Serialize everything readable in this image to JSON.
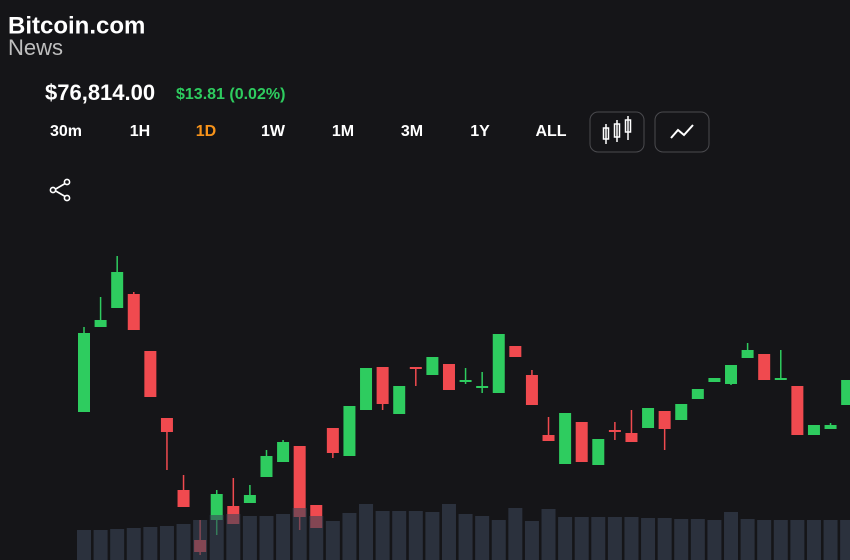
{
  "header": {
    "brand": "Bitcoin.com",
    "brand_sub": "News"
  },
  "price": "$76,814.00",
  "change": "$13.81 (0.02%)",
  "timeframes": [
    "30m",
    "1H",
    "1D",
    "1W",
    "1M",
    "3M",
    "1Y",
    "ALL"
  ],
  "active_timeframe": 2,
  "chart_data": {
    "type": "candlestick",
    "open": [
      75520,
      78920,
      79680,
      80240,
      77960,
      75280,
      72400,
      70400,
      71200,
      71760,
      71880,
      72920,
      73520,
      74160,
      71800,
      74880,
      73760,
      75600,
      77320,
      75440,
      77320,
      77000,
      77440,
      76720,
      76480,
      76280,
      78160,
      77000,
      74600,
      73440,
      75120,
      73400,
      74800,
      74680,
      74880,
      75560,
      75200,
      76040,
      76720,
      76640,
      77680,
      77840,
      76800,
      76560,
      74600,
      74840,
      75800
    ],
    "high": [
      78920,
      80120,
      81760,
      80320,
      77960,
      75280,
      73000,
      71200,
      72400,
      72880,
      72600,
      74000,
      74400,
      74160,
      71800,
      74880,
      75760,
      77280,
      77320,
      76560,
      77320,
      77720,
      77440,
      77280,
      77120,
      78640,
      78160,
      77200,
      75320,
      75480,
      75120,
      74440,
      75120,
      75600,
      75680,
      75560,
      75840,
      76440,
      76880,
      77400,
      78280,
      77840,
      78000,
      76560,
      75000,
      75080,
      76800
    ],
    "low": [
      75520,
      78920,
      79680,
      78800,
      76120,
      73200,
      71720,
      69800,
      70600,
      71040,
      71880,
      72920,
      73520,
      70800,
      70880,
      73680,
      73760,
      75600,
      75600,
      75440,
      76560,
      77000,
      76400,
      76640,
      76280,
      76280,
      77720,
      75800,
      74360,
      73440,
      73520,
      73400,
      74400,
      74320,
      74880,
      74000,
      75200,
      76040,
      76720,
      76600,
      77680,
      76800,
      76800,
      74600,
      74600,
      74840,
      75800
    ],
    "close": [
      78680,
      79200,
      81120,
      78800,
      76120,
      74720,
      71720,
      69920,
      72240,
      71040,
      72200,
      73760,
      74320,
      71320,
      70880,
      73880,
      75760,
      77280,
      75840,
      76560,
      77240,
      77720,
      76400,
      76800,
      76560,
      78640,
      77720,
      75800,
      74360,
      75480,
      73520,
      74440,
      74720,
      74320,
      75680,
      74840,
      75840,
      76440,
      76880,
      77400,
      78000,
      76800,
      76880,
      74600,
      75000,
      75000,
      76800
    ],
    "volume": [
      30,
      30,
      31,
      32,
      33,
      34,
      36,
      40,
      45,
      46,
      44,
      44,
      46,
      52,
      44,
      39,
      47,
      56,
      49,
      49,
      49,
      48,
      56,
      46,
      44,
      40,
      52,
      39,
      51,
      43,
      43,
      43,
      43,
      43,
      42,
      42,
      41,
      41,
      40,
      48,
      41,
      40,
      40,
      40,
      40,
      40,
      40
    ],
    "ylim": [
      69600,
      82400
    ],
    "volume_ylim": [
      0,
      60
    ],
    "up_color": "#2ecc5f",
    "down_color": "#f04a4f",
    "volume_color": "#3b4456"
  }
}
